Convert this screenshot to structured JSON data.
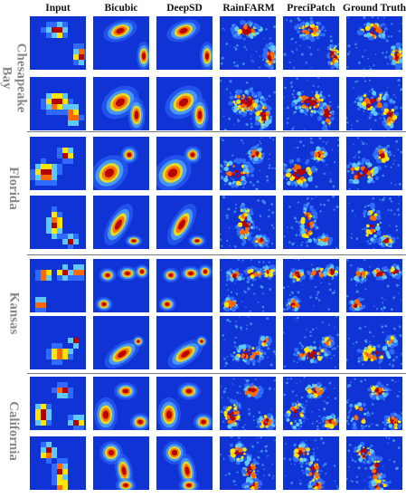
{
  "figure": {
    "columns": [
      "Input",
      "Bicubic",
      "DeepSD",
      "RainFARM",
      "PreciPatch",
      "Ground Truth"
    ],
    "regions": [
      {
        "name": "Chesapeake Bay",
        "lines": [
          "Chesapeake",
          "Bay"
        ]
      },
      {
        "name": "Florida",
        "lines": [
          "Florida"
        ]
      },
      {
        "name": "Kansas",
        "lines": [
          "Kansas"
        ]
      },
      {
        "name": "California",
        "lines": [
          "California"
        ]
      }
    ],
    "colormap": [
      "#0019c8",
      "#2f6bff",
      "#5fc8ff",
      "#ffe500",
      "#ff6a00",
      "#b30000"
    ],
    "background_color": "#1033d6"
  }
}
